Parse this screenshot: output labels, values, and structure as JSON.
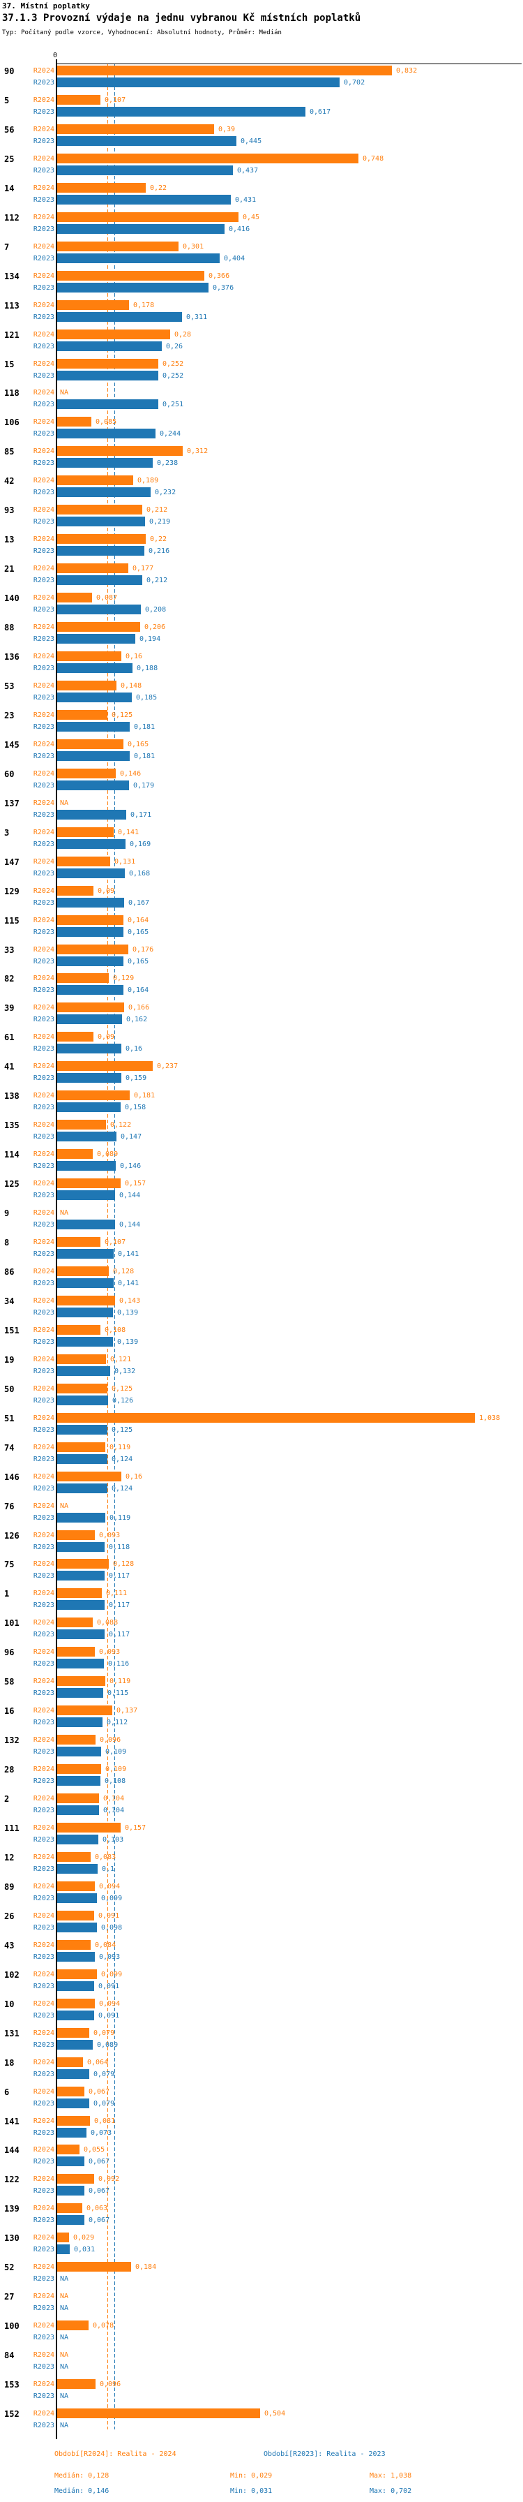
{
  "title": "37. Místní poplatky",
  "subtitle": "37.1.3 Provozní výdaje na jednu vybranou Kč místních poplatků",
  "meta": "Typ: Počítaný podle vzorce, Vyhodnocení: Absolutní hodnoty, Průměr: Medián",
  "colors": {
    "r2024": "#ff7f0e",
    "r2023": "#1f77b4",
    "axis": "#000000"
  },
  "axis": {
    "zero_label": "0"
  },
  "na_label": "NA",
  "chart_data": {
    "type": "bar",
    "orientation": "horizontal",
    "value_axis": "top",
    "xlim": [
      0,
      1.1
    ],
    "grid": false,
    "series_names": [
      "R2024",
      "R2023"
    ],
    "medians": {
      "R2024": 0.128,
      "R2023": 0.146
    },
    "rows": [
      [
        "90",
        0.832,
        0.702
      ],
      [
        "5",
        0.107,
        0.617
      ],
      [
        "56",
        0.39,
        0.445
      ],
      [
        "25",
        0.748,
        0.437
      ],
      [
        "14",
        0.22,
        0.431
      ],
      [
        "112",
        0.45,
        0.416
      ],
      [
        "7",
        0.301,
        0.404
      ],
      [
        "134",
        0.366,
        0.376
      ],
      [
        "113",
        0.178,
        0.311
      ],
      [
        "121",
        0.28,
        0.26
      ],
      [
        "15",
        0.252,
        0.252
      ],
      [
        "118",
        null,
        0.251
      ],
      [
        "106",
        0.085,
        0.244
      ],
      [
        "85",
        0.312,
        0.238
      ],
      [
        "42",
        0.189,
        0.232
      ],
      [
        "93",
        0.212,
        0.219
      ],
      [
        "13",
        0.22,
        0.216
      ],
      [
        "21",
        0.177,
        0.212
      ],
      [
        "140",
        0.087,
        0.208
      ],
      [
        "88",
        0.206,
        0.194
      ],
      [
        "136",
        0.16,
        0.188
      ],
      [
        "53",
        0.148,
        0.185
      ],
      [
        "23",
        0.125,
        0.181
      ],
      [
        "145",
        0.165,
        0.181
      ],
      [
        "60",
        0.146,
        0.179
      ],
      [
        "137",
        null,
        0.171
      ],
      [
        "3",
        0.141,
        0.169
      ],
      [
        "147",
        0.131,
        0.168
      ],
      [
        "129",
        0.09,
        0.167
      ],
      [
        "115",
        0.164,
        0.165
      ],
      [
        "33",
        0.176,
        0.165
      ],
      [
        "82",
        0.129,
        0.164
      ],
      [
        "39",
        0.166,
        0.162
      ],
      [
        "61",
        0.09,
        0.16
      ],
      [
        "41",
        0.237,
        0.159
      ],
      [
        "138",
        0.181,
        0.158
      ],
      [
        "135",
        0.122,
        0.147
      ],
      [
        "114",
        0.089,
        0.146
      ],
      [
        "125",
        0.157,
        0.144
      ],
      [
        "9",
        null,
        0.144
      ],
      [
        "8",
        0.107,
        0.141
      ],
      [
        "86",
        0.128,
        0.141
      ],
      [
        "34",
        0.143,
        0.139
      ],
      [
        "151",
        0.108,
        0.139
      ],
      [
        "19",
        0.121,
        0.132
      ],
      [
        "50",
        0.125,
        0.126
      ],
      [
        "51",
        1.038,
        0.125
      ],
      [
        "74",
        0.119,
        0.124
      ],
      [
        "146",
        0.16,
        0.124
      ],
      [
        "76",
        null,
        0.119
      ],
      [
        "126",
        0.093,
        0.118
      ],
      [
        "75",
        0.128,
        0.117
      ],
      [
        "1",
        0.111,
        0.117
      ],
      [
        "101",
        0.088,
        0.117
      ],
      [
        "96",
        0.093,
        0.116
      ],
      [
        "58",
        0.119,
        0.115
      ],
      [
        "16",
        0.137,
        0.112
      ],
      [
        "132",
        0.096,
        0.109
      ],
      [
        "28",
        0.109,
        0.108
      ],
      [
        "2",
        0.104,
        0.104
      ],
      [
        "111",
        0.157,
        0.103
      ],
      [
        "12",
        0.083,
        0.1
      ],
      [
        "89",
        0.094,
        0.099
      ],
      [
        "26",
        0.091,
        0.098
      ],
      [
        "43",
        0.084,
        0.093
      ],
      [
        "102",
        0.099,
        0.091
      ],
      [
        "10",
        0.094,
        0.091
      ],
      [
        "131",
        0.079,
        0.089
      ],
      [
        "18",
        0.064,
        0.079
      ],
      [
        "6",
        0.067,
        0.079
      ],
      [
        "141",
        0.081,
        0.073
      ],
      [
        "144",
        0.055,
        0.067
      ],
      [
        "122",
        0.092,
        0.067
      ],
      [
        "139",
        0.063,
        0.067
      ],
      [
        "130",
        0.029,
        0.031
      ],
      [
        "52",
        0.184,
        null
      ],
      [
        "27",
        null,
        null
      ],
      [
        "100",
        0.078,
        null
      ],
      [
        "84",
        null,
        null
      ],
      [
        "153",
        0.096,
        null
      ],
      [
        "152",
        0.504,
        null
      ]
    ]
  },
  "footer": {
    "period_r2024": "Období[R2024]: Realita - 2024",
    "period_r2023": "Období[R2023]: Realita - 2023",
    "r2024_median": "Medián: 0,128",
    "r2024_min": "Min: 0,029",
    "r2024_max": "Max: 1,038",
    "r2023_median": "Medián: 0,146",
    "r2023_min": "Min: 0,031",
    "r2023_max": "Max: 0,702"
  }
}
